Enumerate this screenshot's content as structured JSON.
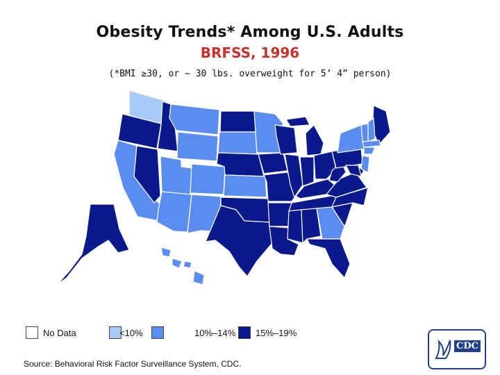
{
  "header": {
    "title": "Obesity Trends* Among U.S. Adults",
    "subtitle": "BRFSS, 1996",
    "note": "(*BMI ≥30, or ~ 30 lbs. overweight for 5’ 4” person)"
  },
  "colors": {
    "no_data": "#ffffff",
    "lt10": "#a9c9f7",
    "10to14": "#5b8cf0",
    "15to19": "#0a1a8e",
    "border": "#ffffff",
    "subtitle": "#c8302a"
  },
  "legend": [
    {
      "label": "No Data",
      "color_key": "no_data"
    },
    {
      "label": "<10%",
      "color_key": "lt10"
    },
    {
      "label": "10%–14%",
      "color_key": "10to14"
    },
    {
      "label": "15%–19%",
      "color_key": "15to19"
    }
  ],
  "source": "Source: Behavioral Risk Factor Surveillance System, CDC.",
  "logo": {
    "icon": "hhs-eagle-icon",
    "text": "CDC"
  },
  "map_data": {
    "WA": "lt10",
    "OR": "15to19",
    "CA": "10to14",
    "NV": "15to19",
    "ID": "15to19",
    "MT": "10to14",
    "WY": "10to14",
    "UT": "10to14",
    "AZ": "10to14",
    "CO": "10to14",
    "NM": "10to14",
    "ND": "15to19",
    "SD": "10to14",
    "NE": "15to19",
    "KS": "10to14",
    "OK": "15to19",
    "TX": "15to19",
    "MN": "10to14",
    "IA": "15to19",
    "MO": "15to19",
    "AR": "15to19",
    "LA": "15to19",
    "WI": "15to19",
    "IL": "15to19",
    "MI": "15to19",
    "IN": "15to19",
    "OH": "15to19",
    "KY": "15to19",
    "TN": "15to19",
    "MS": "15to19",
    "AL": "15to19",
    "GA": "10to14",
    "FL": "15to19",
    "SC": "15to19",
    "NC": "15to19",
    "VA": "15to19",
    "WV": "15to19",
    "PA": "15to19",
    "NY": "10to14",
    "ME": "15to19",
    "NH": "10to14",
    "VT": "10to14",
    "MA": "10to14",
    "CT": "10to14",
    "NJ": "10to14",
    "DE": "15to19",
    "MD": "15to19",
    "AK": "15to19",
    "HI": "10to14"
  }
}
